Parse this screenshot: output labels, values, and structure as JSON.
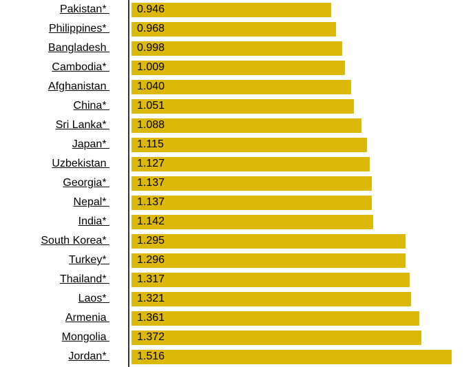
{
  "chart_data": {
    "type": "bar",
    "orientation": "horizontal",
    "title": "",
    "xlabel": "",
    "ylabel": "",
    "legend": false,
    "grid": false,
    "xlim": [
      0,
      1.62
    ],
    "bar_color": "#DCB80A",
    "axis_line_color": "#333333",
    "label_color": "#000000",
    "categories": [
      "Pakistan*",
      "Philippines*",
      "Bangladesh",
      "Cambodia*",
      "Afghanistan",
      "China*",
      "Sri Lanka*",
      "Japan*",
      "Uzbekistan",
      "Georgia*",
      "Nepal*",
      "India*",
      "South Korea*",
      "Turkey*",
      "Thailand*",
      "Laos*",
      "Armenia",
      "Mongolia",
      "Jordan*"
    ],
    "values": [
      0.946,
      0.968,
      0.998,
      1.009,
      1.04,
      1.051,
      1.088,
      1.115,
      1.127,
      1.137,
      1.137,
      1.142,
      1.295,
      1.296,
      1.317,
      1.321,
      1.361,
      1.372,
      1.516
    ],
    "value_labels": [
      "0.946",
      "0.968",
      "0.998",
      "1.009",
      "1.040",
      "1.051",
      "1.088",
      "1.115",
      "1.127",
      "1.137",
      "1.137",
      "1.142",
      "1.295",
      "1.296",
      "1.317",
      "1.321",
      "1.361",
      "1.372",
      "1.516"
    ]
  }
}
